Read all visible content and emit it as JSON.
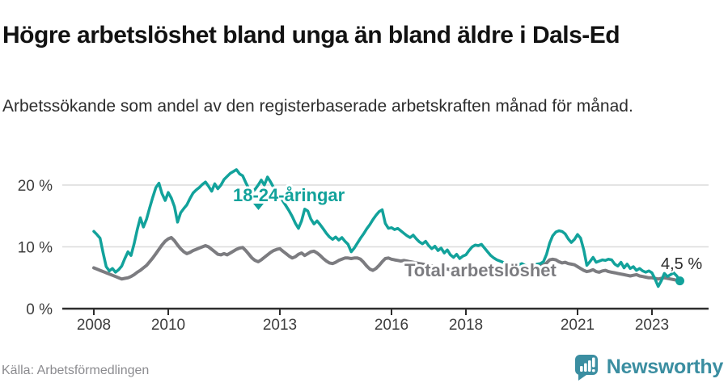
{
  "header": {
    "title": "Högre arbetslöshet bland unga än bland äldre i Dals-Ed",
    "subtitle": "Arbetssökande som andel av den registerbaserade arbetskraften månad för månad."
  },
  "footer": {
    "source": "Källa: Arbetsförmedlingen",
    "brand": "Newsworthy",
    "brand_icon": "newsworthy-speech-bubble-chart-icon"
  },
  "colors": {
    "young": "#12a29b",
    "total": "#7c7c80",
    "grid": "#dcdcdc",
    "axis": "#2d2d2d",
    "tick_text": "#3d3d3d",
    "annotation_text": "#2b2b2b",
    "brand": "#3b8ea1"
  },
  "chart_data": {
    "type": "line",
    "x_unit": "month",
    "x_start": "2008-01",
    "x_end": "2023-10",
    "ylim": [
      0,
      24
    ],
    "grid": "horizontal",
    "y_ticks": [
      {
        "value": 0,
        "label": "0 %"
      },
      {
        "value": 10,
        "label": "10 %"
      },
      {
        "value": 20,
        "label": "20 %"
      }
    ],
    "x_ticks": [
      {
        "year": 2008,
        "label": "2008"
      },
      {
        "year": 2010,
        "label": "2010"
      },
      {
        "year": 2013,
        "label": "2013"
      },
      {
        "year": 2016,
        "label": "2016"
      },
      {
        "year": 2018,
        "label": "2018"
      },
      {
        "year": 2021,
        "label": "2021"
      },
      {
        "year": 2023,
        "label": "2023"
      }
    ],
    "end_annotation": "4,5 %",
    "series": [
      {
        "name": "18-24-åringar",
        "label": "18-24-åringar",
        "color": "#12a29b",
        "values": [
          12.5,
          12.0,
          11.4,
          9.0,
          6.8,
          6.1,
          6.5,
          5.9,
          6.3,
          6.9,
          8.1,
          9.2,
          8.6,
          10.5,
          12.8,
          14.7,
          13.2,
          14.5,
          16.3,
          18.0,
          19.6,
          20.3,
          18.6,
          17.5,
          18.8,
          17.9,
          16.5,
          14.0,
          15.5,
          16.2,
          16.8,
          17.8,
          18.7,
          19.2,
          19.6,
          20.1,
          20.5,
          19.8,
          19.0,
          20.2,
          19.4,
          20.0,
          20.9,
          21.4,
          21.9,
          22.2,
          22.5,
          21.8,
          21.5,
          20.4,
          19.4,
          18.8,
          19.3,
          20.0,
          20.8,
          20.0,
          21.3,
          20.5,
          19.6,
          18.8,
          18.2,
          17.4,
          16.6,
          15.8,
          14.9,
          13.8,
          13.0,
          14.2,
          16.1,
          15.8,
          14.5,
          13.7,
          14.2,
          13.6,
          12.9,
          12.2,
          11.6,
          11.2,
          11.6,
          11.1,
          11.5,
          10.9,
          10.4,
          9.2,
          9.8,
          10.6,
          11.4,
          12.1,
          12.9,
          13.6,
          14.4,
          15.1,
          15.7,
          16.0,
          13.8,
          13.0,
          13.1,
          12.8,
          13.0,
          12.6,
          12.2,
          11.8,
          11.5,
          11.9,
          11.3,
          10.8,
          10.5,
          10.9,
          10.2,
          9.7,
          10.1,
          9.4,
          9.8,
          9.0,
          9.5,
          8.7,
          8.3,
          8.8,
          8.1,
          8.5,
          8.7,
          9.4,
          10.0,
          10.3,
          10.2,
          10.4,
          9.8,
          9.2,
          8.6,
          8.2,
          7.9,
          7.7,
          7.5,
          7.3,
          7.1,
          7.0,
          6.9,
          7.1,
          7.3,
          7.0,
          6.8,
          6.9,
          7.1,
          7.2,
          7.3,
          7.6,
          8.8,
          10.6,
          11.8,
          12.4,
          12.6,
          12.5,
          12.1,
          11.3,
          10.7,
          11.2,
          12.0,
          11.4,
          9.5,
          7.0,
          7.6,
          8.3,
          7.5,
          7.7,
          7.9,
          7.8,
          8.0,
          7.9,
          7.2,
          6.9,
          7.5,
          6.6,
          7.2,
          6.5,
          6.8,
          6.2,
          6.5,
          6.1,
          5.9,
          6.1,
          5.8,
          4.8,
          3.6,
          4.5,
          5.7,
          5.2,
          5.5,
          5.8,
          5.3,
          4.5
        ]
      },
      {
        "name": "Total arbetslöshet",
        "label": "Total arbetslöshet",
        "color": "#7c7c80",
        "values": [
          6.6,
          6.4,
          6.2,
          6.0,
          5.8,
          5.6,
          5.4,
          5.2,
          5.0,
          4.8,
          4.9,
          5.0,
          5.2,
          5.5,
          5.9,
          6.2,
          6.6,
          7.0,
          7.6,
          8.2,
          8.9,
          9.6,
          10.3,
          10.9,
          11.3,
          11.5,
          11.0,
          10.3,
          9.7,
          9.2,
          8.9,
          9.1,
          9.4,
          9.6,
          9.8,
          10.0,
          10.2,
          10.0,
          9.6,
          9.2,
          8.8,
          8.7,
          8.9,
          8.7,
          9.0,
          9.3,
          9.6,
          9.8,
          9.9,
          9.4,
          8.8,
          8.2,
          7.8,
          7.6,
          7.9,
          8.3,
          8.7,
          9.1,
          9.4,
          9.6,
          9.7,
          9.3,
          8.9,
          8.5,
          8.2,
          8.4,
          8.8,
          9.0,
          8.6,
          8.9,
          9.2,
          9.3,
          9.0,
          8.6,
          8.1,
          7.7,
          7.4,
          7.3,
          7.5,
          7.8,
          8.0,
          8.2,
          8.2,
          8.1,
          8.2,
          8.2,
          8.0,
          7.5,
          6.9,
          6.4,
          6.2,
          6.5,
          7.0,
          7.6,
          8.1,
          8.2,
          8.0,
          7.9,
          7.8,
          7.7,
          7.8,
          7.7,
          7.6,
          7.5,
          7.4,
          7.3,
          7.2,
          7.1,
          7.0,
          6.9,
          6.8,
          6.7,
          6.6,
          6.5,
          6.4,
          6.3,
          6.2,
          6.2,
          6.3,
          6.4,
          6.5,
          6.6,
          6.7,
          6.6,
          6.5,
          6.4,
          6.3,
          6.2,
          6.1,
          6.0,
          5.9,
          5.9,
          5.9,
          5.8,
          5.8,
          5.9,
          6.0,
          6.1,
          6.2,
          6.3,
          6.4,
          6.5,
          6.6,
          6.7,
          6.8,
          7.0,
          7.4,
          7.9,
          8.0,
          7.9,
          7.6,
          7.4,
          7.5,
          7.3,
          7.2,
          7.1,
          6.8,
          6.5,
          6.2,
          6.0,
          6.1,
          6.3,
          6.0,
          5.9,
          6.1,
          6.2,
          6.0,
          5.9,
          5.8,
          5.7,
          5.6,
          5.5,
          5.4,
          5.3,
          5.4,
          5.5,
          5.3,
          5.2,
          5.1,
          5.0,
          5.0,
          4.9,
          4.8,
          4.9,
          5.0,
          4.9,
          4.8,
          4.7,
          4.6,
          4.4
        ]
      }
    ]
  }
}
